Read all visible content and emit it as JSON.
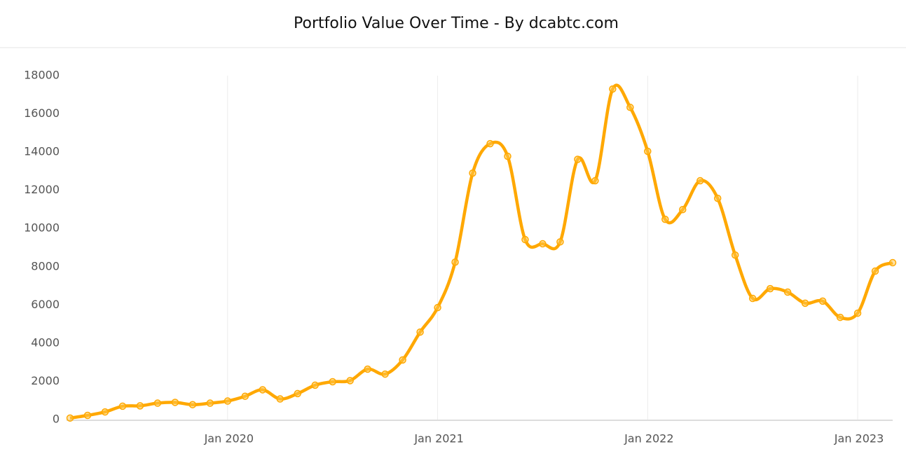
{
  "chart_data": {
    "type": "line",
    "title": "Portfolio Value Over Time - By dcabtc.com",
    "categories": [
      null,
      null,
      null,
      null,
      null,
      null,
      null,
      null,
      null,
      "Jan 2020",
      null,
      null,
      null,
      null,
      null,
      null,
      null,
      null,
      null,
      null,
      null,
      "Jan 2021",
      null,
      null,
      null,
      null,
      null,
      null,
      null,
      null,
      null,
      null,
      null,
      "Jan 2022",
      null,
      null,
      null,
      null,
      null,
      null,
      null,
      null,
      null,
      null,
      null,
      "Jan 2023",
      null,
      null
    ],
    "series": [
      {
        "name": "Portfolio Value",
        "color": "#ffa800",
        "values": [
          80,
          220,
          400,
          700,
          720,
          860,
          900,
          780,
          860,
          970,
          1220,
          1560,
          1080,
          1360,
          1800,
          1980,
          2040,
          2640,
          2380,
          3120,
          4580,
          5860,
          8240,
          12900,
          14440,
          13780,
          9420,
          9200,
          9300,
          13620,
          12500,
          17300,
          16340,
          14040,
          10480,
          10990,
          12500,
          11580,
          8610,
          6340,
          6850,
          6670,
          6090,
          6200,
          5350,
          5570,
          7770,
          8210
        ]
      }
    ],
    "ylim": [
      0,
      18000
    ],
    "yticks": [
      0,
      2000,
      4000,
      6000,
      8000,
      10000,
      12000,
      14000,
      16000,
      18000
    ],
    "grid": true
  }
}
